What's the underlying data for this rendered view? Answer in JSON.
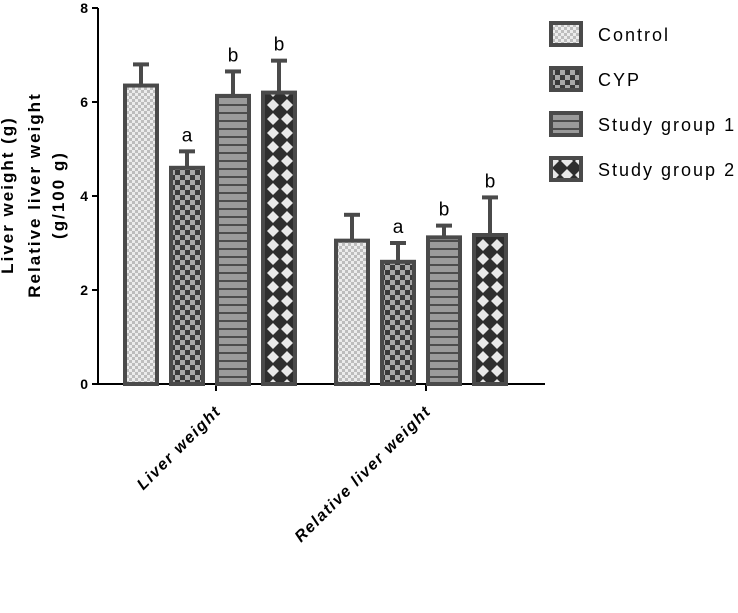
{
  "chart_data": {
    "type": "bar",
    "title": "",
    "ylabel_line1": "Liver weight (g)",
    "ylabel_line2": "Relative liver weight",
    "ylabel_line3": "(g/100 g)",
    "xlabel": "",
    "ylim": [
      0,
      8
    ],
    "yticks": [
      "0",
      "2",
      "4",
      "6",
      "8"
    ],
    "categories": [
      "Liver weight",
      "Relative liver weight"
    ],
    "legend_position": "top-right",
    "series": [
      {
        "name": "Control",
        "values": [
          6.35,
          3.05
        ],
        "errors": [
          0.45,
          0.55
        ],
        "labels": [
          "",
          ""
        ],
        "fill": "light-checker"
      },
      {
        "name": "CYP",
        "values": [
          4.6,
          2.6
        ],
        "errors": [
          0.35,
          0.4
        ],
        "labels": [
          "a",
          "a"
        ],
        "fill": "dark-checker"
      },
      {
        "name": "Study group 1",
        "values": [
          6.13,
          3.12
        ],
        "errors": [
          0.52,
          0.25
        ],
        "labels": [
          "b",
          "b"
        ],
        "fill": "horizontal-stripes"
      },
      {
        "name": "Study group 2",
        "values": [
          6.2,
          3.17
        ],
        "errors": [
          0.68,
          0.8
        ],
        "labels": [
          "b",
          "b"
        ],
        "fill": "diamonds"
      }
    ]
  }
}
